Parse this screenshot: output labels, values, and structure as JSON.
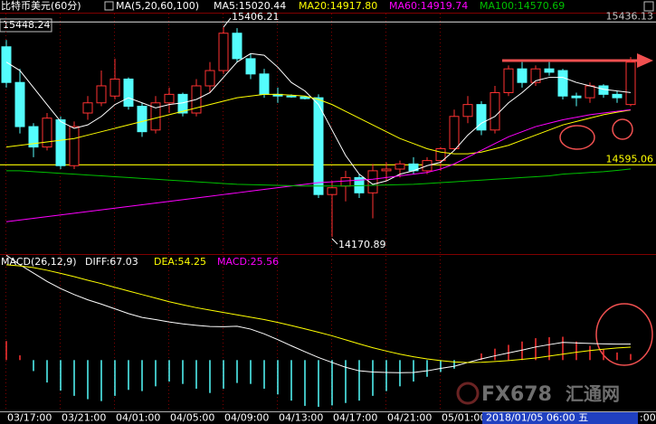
{
  "chart_data": [
    {
      "type": "candlestick",
      "title": "比特币美元(60分)",
      "indicator_label": "MA(5,20,60,100)",
      "corner_label": "15448.24",
      "cursor_label": "2018/01/05 06:00 五",
      "edge_label": ":00",
      "categories": [
        null,
        "03/17:00",
        null,
        null,
        null,
        "03/21:00",
        null,
        null,
        null,
        "04/01:00",
        null,
        null,
        null,
        "04/05:00",
        null,
        null,
        null,
        "04/09:00",
        null,
        null,
        null,
        "04/13:00",
        null,
        null,
        null,
        "04/17:00",
        null,
        null,
        null,
        "04/21:00",
        null,
        null,
        null,
        "05/01:00",
        null,
        null,
        null,
        null,
        null,
        null,
        null,
        null,
        null,
        null,
        null,
        null,
        null
      ],
      "open": [
        15290,
        15080,
        14820,
        14700,
        14860,
        14590,
        14900,
        14960,
        15000,
        15100,
        14940,
        14800,
        14960,
        15010,
        14900,
        15060,
        15150,
        15370,
        15220,
        15130,
        15010,
        15000,
        14995,
        14990,
        14420,
        14470,
        14520,
        14430,
        14560,
        14570,
        14600,
        14560,
        14620,
        14690,
        14880,
        14950,
        14800,
        15020,
        15160,
        15080,
        15160,
        15150,
        15000,
        14990,
        15060,
        15010,
        14950
      ],
      "high": [
        15330,
        15160,
        14840,
        14900,
        14880,
        14850,
        15000,
        15150,
        15220,
        15110,
        14960,
        15000,
        15050,
        15020,
        15100,
        15200,
        15406.21,
        15400,
        15250,
        15160,
        15050,
        15010,
        15000,
        15010,
        14500,
        14560,
        14540,
        14600,
        14610,
        14620,
        14640,
        14640,
        14700,
        14920,
        15000,
        14970,
        15060,
        15180,
        15200,
        15180,
        15200,
        15160,
        15020,
        15080,
        15070,
        15030,
        15230
      ],
      "low": [
        15050,
        14780,
        14640,
        14680,
        14570,
        14570,
        14860,
        14940,
        14980,
        14920,
        14760,
        14780,
        14900,
        14880,
        14880,
        15020,
        15130,
        15200,
        15100,
        14990,
        14960,
        14990,
        14980,
        14400,
        14170.89,
        14380,
        14400,
        14280,
        14500,
        14520,
        14540,
        14540,
        14560,
        14680,
        14840,
        14770,
        14780,
        15000,
        15050,
        15060,
        15120,
        14980,
        14940,
        14960,
        14990,
        14960,
        14940
      ],
      "close": [
        15080,
        14820,
        14700,
        14870,
        14590,
        14820,
        14960,
        15060,
        15100,
        14940,
        14790,
        14960,
        15010,
        14900,
        15060,
        15150,
        15370,
        15220,
        15130,
        15010,
        15000,
        14995,
        14985,
        14420,
        14460,
        14520,
        14430,
        14560,
        14570,
        14600,
        14560,
        14620,
        14690,
        14880,
        14950,
        14800,
        15020,
        15160,
        15080,
        15160,
        15140,
        15000,
        14990,
        15060,
        15010,
        14990,
        15200
      ],
      "up_color": "#ff3232",
      "down_color": "#54fcfc",
      "ylim": [
        14075,
        15491
      ],
      "series": [
        {
          "name": "MA5:15020.44",
          "color": "#ffffff",
          "values": [
            15200,
            15150,
            15050,
            14950,
            14850,
            14810,
            14830,
            14880,
            14950,
            14990,
            14960,
            14930,
            14950,
            14960,
            14980,
            15020,
            15110,
            15200,
            15250,
            15240,
            15170,
            15080,
            15030,
            14950,
            14800,
            14650,
            14540,
            14480,
            14500,
            14540,
            14560,
            14590,
            14610,
            14680,
            14770,
            14840,
            14880,
            14960,
            15020,
            15090,
            15110,
            15110,
            15080,
            15060,
            15040,
            15030,
            15020.44
          ]
        },
        {
          "name": "MA20:14917.80",
          "color": "#ffff00",
          "values": [
            14700,
            14710,
            14720,
            14730,
            14740,
            14750,
            14770,
            14790,
            14810,
            14830,
            14850,
            14870,
            14890,
            14910,
            14930,
            14950,
            14970,
            14990,
            15000,
            15010,
            15010,
            15005,
            15000,
            14980,
            14950,
            14910,
            14870,
            14830,
            14790,
            14750,
            14720,
            14690,
            14670,
            14660,
            14660,
            14670,
            14690,
            14710,
            14740,
            14770,
            14800,
            14830,
            14850,
            14870,
            14890,
            14905,
            14917.8
          ]
        },
        {
          "name": "MA60:14919.74",
          "color": "#ff00ff",
          "values": [
            14260,
            14270,
            14280,
            14290,
            14300,
            14310,
            14320,
            14330,
            14340,
            14350,
            14360,
            14370,
            14380,
            14390,
            14400,
            14410,
            14420,
            14430,
            14440,
            14450,
            14460,
            14470,
            14480,
            14490,
            14495,
            14500,
            14505,
            14510,
            14520,
            14530,
            14540,
            14550,
            14570,
            14600,
            14640,
            14680,
            14720,
            14760,
            14790,
            14820,
            14840,
            14860,
            14875,
            14890,
            14900,
            14910,
            14919.74
          ]
        },
        {
          "name": "MA100:14570.69",
          "color": "#00c000",
          "values": [
            14560,
            14560,
            14555,
            14550,
            14545,
            14540,
            14535,
            14530,
            14525,
            14520,
            14515,
            14510,
            14505,
            14500,
            14495,
            14490,
            14485,
            14480,
            14478,
            14476,
            14474,
            14472,
            14470,
            14470,
            14470,
            14470,
            14472,
            14474,
            14476,
            14478,
            14480,
            14485,
            14490,
            14495,
            14500,
            14505,
            14510,
            14515,
            14520,
            14525,
            14530,
            14540,
            14545,
            14550,
            14555,
            14562,
            14570.69
          ]
        }
      ],
      "levels": [
        {
          "value": 15436.13,
          "label": "15436.13",
          "color": "#c8c8c8"
        },
        {
          "value": 14595.06,
          "label": "14595.06",
          "color": "#ffff00"
        }
      ],
      "annotations": [
        {
          "value": 15406.21,
          "label": "15406.21"
        },
        {
          "value": 14170.89,
          "label": "14170.89"
        }
      ]
    },
    {
      "type": "macd",
      "title": "MACD(26,12,9)",
      "ylim": [
        -215,
        445
      ],
      "series": [
        {
          "name": "DIFF:67.03",
          "color": "#ffffff",
          "values": [
            440,
            400,
            365,
            330,
            300,
            275,
            253,
            235,
            215,
            195,
            179,
            170,
            160,
            152,
            146,
            141,
            140,
            142,
            130,
            110,
            86,
            60,
            35,
            11,
            -10,
            -30,
            -45,
            -50,
            -52,
            -53,
            -52,
            -45,
            -35,
            -26,
            -10,
            5,
            18,
            30,
            42,
            55,
            65,
            74,
            72,
            70,
            68,
            67,
            67.03
          ]
        },
        {
          "name": "DEA:54.25",
          "color": "#ffff00",
          "values": [
            400,
            395,
            388,
            377,
            364,
            350,
            335,
            321,
            305,
            290,
            275,
            260,
            245,
            232,
            220,
            210,
            200,
            190,
            180,
            170,
            158,
            145,
            131,
            117,
            102,
            85,
            68,
            52,
            38,
            25,
            14,
            5,
            -2,
            -8,
            -10,
            -9,
            -6,
            -2,
            3,
            9,
            17,
            25,
            33,
            40,
            46,
            51,
            54.25
          ]
        }
      ],
      "histogram": {
        "name": "MACD:25.56",
        "color": "#ff00ff",
        "up_color": "#ff3232",
        "down_color": "#54fcfc",
        "values": [
          80,
          20,
          -46,
          -94,
          -128,
          -150,
          -164,
          -172,
          -150,
          -125,
          -130,
          -110,
          -90,
          -100,
          -120,
          -138,
          -120,
          -96,
          -100,
          -120,
          -144,
          -170,
          -192,
          -196,
          -190,
          -180,
          -170,
          -150,
          -130,
          -110,
          -90,
          -70,
          -50,
          -36,
          0,
          28,
          48,
          64,
          78,
          92,
          96,
          98,
          78,
          60,
          44,
          32,
          25.56
        ]
      }
    }
  ],
  "watermark": [
    "FX678",
    "汇通网"
  ]
}
